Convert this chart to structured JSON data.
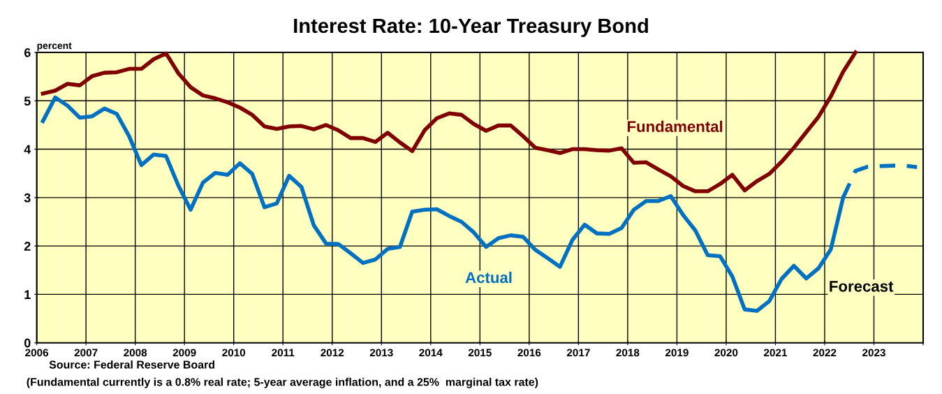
{
  "chart_data": {
    "type": "line",
    "title": "Interest Rate: 10-Year Treasury Bond",
    "ylabel": "percent",
    "xlim": [
      2006,
      2024
    ],
    "xticks": [
      2006,
      2007,
      2008,
      2009,
      2010,
      2011,
      2012,
      2013,
      2014,
      2015,
      2016,
      2017,
      2018,
      2019,
      2020,
      2021,
      2022,
      2023,
      {
        "value": 2024,
        "label": null
      }
    ],
    "ylim": [
      0,
      6
    ],
    "yticks": [
      0,
      1,
      2,
      3,
      4,
      5,
      6
    ],
    "grid": true,
    "legend": false,
    "marker": "none",
    "series": [
      {
        "name": "Fundamental",
        "color": "#800000",
        "line_style": "solid",
        "x": [
          2006.125,
          2006.375,
          2006.625,
          2006.875,
          2007.125,
          2007.375,
          2007.625,
          2007.875,
          2008.125,
          2008.375,
          2008.625,
          2008.875,
          2009.125,
          2009.375,
          2009.625,
          2009.875,
          2010.125,
          2010.375,
          2010.625,
          2010.875,
          2011.125,
          2011.375,
          2011.625,
          2011.875,
          2012.125,
          2012.375,
          2012.625,
          2012.875,
          2013.125,
          2013.375,
          2013.625,
          2013.875,
          2014.125,
          2014.375,
          2014.625,
          2014.875,
          2015.125,
          2015.375,
          2015.625,
          2015.875,
          2016.125,
          2016.375,
          2016.625,
          2016.875,
          2017.125,
          2017.375,
          2017.625,
          2017.875,
          2018.125,
          2018.375,
          2018.625,
          2018.875,
          2019.125,
          2019.375,
          2019.625,
          2019.875,
          2020.125,
          2020.375,
          2020.625,
          2020.875,
          2021.125,
          2021.375,
          2021.625,
          2021.875,
          2022.125,
          2022.375,
          2022.625
        ],
        "values": [
          5.15,
          5.21,
          5.35,
          5.32,
          5.51,
          5.58,
          5.59,
          5.66,
          5.66,
          5.86,
          5.98,
          5.57,
          5.28,
          5.11,
          5.05,
          4.97,
          4.86,
          4.71,
          4.47,
          4.42,
          4.47,
          4.48,
          4.41,
          4.5,
          4.39,
          4.23,
          4.23,
          4.15,
          4.34,
          4.14,
          3.96,
          4.39,
          4.64,
          4.74,
          4.71,
          4.52,
          4.38,
          4.49,
          4.49,
          4.27,
          4.03,
          3.98,
          3.92,
          4.0,
          4.0,
          3.98,
          3.97,
          4.02,
          3.72,
          3.73,
          3.58,
          3.44,
          3.24,
          3.13,
          3.13,
          3.28,
          3.47,
          3.15,
          3.34,
          3.49,
          3.74,
          4.03,
          4.35,
          4.67,
          5.09,
          5.6,
          6.0
        ]
      },
      {
        "name": "Actual",
        "color": "#0070c0",
        "line_style": "solid",
        "x": [
          2006.125,
          2006.375,
          2006.625,
          2006.875,
          2007.125,
          2007.375,
          2007.625,
          2007.875,
          2008.125,
          2008.375,
          2008.625,
          2008.875,
          2009.125,
          2009.375,
          2009.625,
          2009.875,
          2010.125,
          2010.375,
          2010.625,
          2010.875,
          2011.125,
          2011.375,
          2011.625,
          2011.875,
          2012.125,
          2012.375,
          2012.625,
          2012.875,
          2013.125,
          2013.375,
          2013.625,
          2013.875,
          2014.125,
          2014.375,
          2014.625,
          2014.875,
          2015.125,
          2015.375,
          2015.625,
          2015.875,
          2016.125,
          2016.375,
          2016.625,
          2016.875,
          2017.125,
          2017.375,
          2017.625,
          2017.875,
          2018.125,
          2018.375,
          2018.625,
          2018.875,
          2019.125,
          2019.375,
          2019.625,
          2019.875,
          2020.125,
          2020.375,
          2020.625,
          2020.875,
          2021.125,
          2021.375,
          2021.625,
          2021.875,
          2022.125,
          2022.375
        ],
        "values": [
          4.58,
          5.07,
          4.9,
          4.65,
          4.68,
          4.84,
          4.73,
          4.27,
          3.67,
          3.89,
          3.86,
          3.25,
          2.75,
          3.31,
          3.51,
          3.47,
          3.71,
          3.49,
          2.8,
          2.88,
          3.45,
          3.22,
          2.43,
          2.05,
          2.04,
          1.85,
          1.65,
          1.72,
          1.94,
          1.98,
          2.71,
          2.75,
          2.76,
          2.62,
          2.5,
          2.28,
          1.98,
          2.16,
          2.22,
          2.19,
          1.92,
          1.75,
          1.57,
          2.12,
          2.44,
          2.26,
          2.25,
          2.37,
          2.75,
          2.93,
          2.93,
          3.03,
          2.64,
          2.32,
          1.81,
          1.79,
          1.37,
          0.69,
          0.66,
          0.86,
          1.32,
          1.59,
          1.33,
          1.54,
          1.93,
          3.0
        ]
      },
      {
        "color": "#0070c0",
        "line_style": "dashed",
        "x": [
          2022.375,
          2022.625,
          2022.875,
          2023.125,
          2023.375,
          2023.625,
          2023.875
        ],
        "values": [
          3.0,
          3.55,
          3.64,
          3.65,
          3.66,
          3.66,
          3.63
        ]
      }
    ],
    "annotations": [
      "Forecast",
      "Source: Federal Reserve Board",
      "(Fundamental currently is a 0.8% real rate; 5-year average inflation, and a 25%  marginal tax rate)"
    ]
  }
}
